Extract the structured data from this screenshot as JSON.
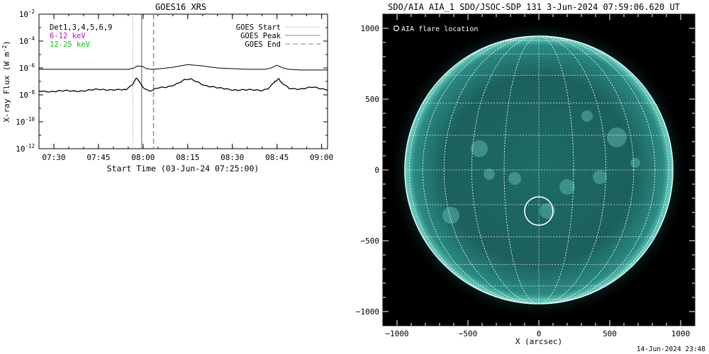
{
  "chart_data": [
    {
      "type": "line",
      "title": "GOES16 XRS",
      "xlabel": "Start Time (03-Jun-24 07:25:00)",
      "ylabel": "X-ray Flux (W m",
      "ylabel_sup": "-2",
      "ylabel_close": ")",
      "x_unit": "minutes after 07:25",
      "xlim": [
        0,
        97
      ],
      "ylim_log10": [
        -12,
        -2
      ],
      "x_ticks": [
        {
          "label": "07:30",
          "value": 5
        },
        {
          "label": "07:45",
          "value": 20
        },
        {
          "label": "08:00",
          "value": 35
        },
        {
          "label": "08:15",
          "value": 50
        },
        {
          "label": "08:30",
          "value": 65
        },
        {
          "label": "08:45",
          "value": 80
        },
        {
          "label": "09:00",
          "value": 95
        }
      ],
      "y_ticks": [
        {
          "base": "10",
          "exp": "-2",
          "value": -2
        },
        {
          "base": "10",
          "exp": "-4",
          "value": -4
        },
        {
          "base": "10",
          "exp": "-6",
          "value": -6
        },
        {
          "base": "10",
          "exp": "-8",
          "value": -8
        },
        {
          "base": "10",
          "exp": "-10",
          "value": -10
        },
        {
          "base": "10",
          "exp": "-12",
          "value": -12
        }
      ],
      "legend_left": [
        {
          "text": "Det1,3,4,5,6,9",
          "color": "#000000"
        },
        {
          "text": "6-12 keV",
          "color": "#cc00cc"
        },
        {
          "text": "12-25 keV",
          "color": "#00cc00"
        }
      ],
      "legend_right": [
        {
          "text": "GOES Start",
          "style": "dotted"
        },
        {
          "text": "GOES Peak",
          "style": "solid"
        },
        {
          "text": "GOES End",
          "style": "dashed"
        }
      ],
      "event_lines": {
        "start": 31.5,
        "peak": 34.5,
        "end": 38.5
      },
      "series": [
        {
          "name": "",
          "values_log10": [
            [
              0,
              -6.1
            ],
            [
              10,
              -6.1
            ],
            [
              20,
              -6.1
            ],
            [
              30,
              -6.1
            ],
            [
              32,
              -6.0
            ],
            [
              33,
              -5.85
            ],
            [
              35,
              -5.9
            ],
            [
              36,
              -6.05
            ],
            [
              38,
              -6.1
            ],
            [
              41,
              -6.05
            ],
            [
              45,
              -5.95
            ],
            [
              50,
              -5.75
            ],
            [
              55,
              -5.85
            ],
            [
              60,
              -6.0
            ],
            [
              65,
              -6.05
            ],
            [
              70,
              -6.1
            ],
            [
              76,
              -6.1
            ],
            [
              78,
              -6.0
            ],
            [
              80,
              -5.8
            ],
            [
              82,
              -6.0
            ],
            [
              84,
              -6.1
            ],
            [
              88,
              -6.15
            ],
            [
              97,
              -6.15
            ]
          ]
        },
        {
          "name": "",
          "values_log10": [
            [
              0,
              -7.7
            ],
            [
              5,
              -7.75
            ],
            [
              10,
              -7.7
            ],
            [
              15,
              -7.7
            ],
            [
              20,
              -7.6
            ],
            [
              25,
              -7.6
            ],
            [
              29,
              -7.65
            ],
            [
              30.5,
              -7.4
            ],
            [
              31.5,
              -7.2
            ],
            [
              32.5,
              -6.8
            ],
            [
              33,
              -6.75
            ],
            [
              34,
              -7.1
            ],
            [
              35,
              -7.4
            ],
            [
              36,
              -7.6
            ],
            [
              37,
              -7.7
            ],
            [
              38,
              -7.7
            ],
            [
              40,
              -7.5
            ],
            [
              43,
              -7.4
            ],
            [
              46,
              -7.2
            ],
            [
              49,
              -6.9
            ],
            [
              51,
              -6.85
            ],
            [
              53,
              -7.0
            ],
            [
              56,
              -7.3
            ],
            [
              60,
              -7.5
            ],
            [
              65,
              -7.6
            ],
            [
              70,
              -7.65
            ],
            [
              75,
              -7.65
            ],
            [
              77,
              -7.5
            ],
            [
              79,
              -7.1
            ],
            [
              80.5,
              -6.8
            ],
            [
              82,
              -7.2
            ],
            [
              84,
              -7.5
            ],
            [
              88,
              -7.55
            ],
            [
              92,
              -7.45
            ],
            [
              97,
              -7.6
            ]
          ]
        }
      ]
    },
    {
      "type": "scatter",
      "title": "SDO/AIA AIA_1 SDO/JSOC-SDP 131  3-Jun-2024 07:59:06.620 UT",
      "xlabel": "X (arcsec)",
      "ylabel": "",
      "xlim": [
        -1100,
        1100
      ],
      "ylim": [
        -1100,
        1100
      ],
      "x_ticks": [
        {
          "label": "−1000",
          "value": -1000
        },
        {
          "label": "−500",
          "value": -500
        },
        {
          "label": "0",
          "value": 0
        },
        {
          "label": "500",
          "value": 500
        },
        {
          "label": "1000",
          "value": 1000
        }
      ],
      "y_ticks": [
        {
          "label": "1000",
          "value": 1000
        },
        {
          "label": "500",
          "value": 500
        },
        {
          "label": "0",
          "value": 0
        },
        {
          "label": "−500",
          "value": -500
        },
        {
          "label": "−1000",
          "value": -1000
        }
      ],
      "legend_text": "AIA flare location",
      "solar_radius_arcsec": 946,
      "flare_location": {
        "x": 0,
        "y": -290,
        "r_arcsec": 100
      },
      "colors": {
        "disk": "#1f7a74",
        "disk_edge": "#0a2e2c",
        "bright": "#7fe3d4",
        "background": "#000000"
      }
    }
  ],
  "footer": {
    "timestamp": "14-Jun-2024 23:48"
  }
}
